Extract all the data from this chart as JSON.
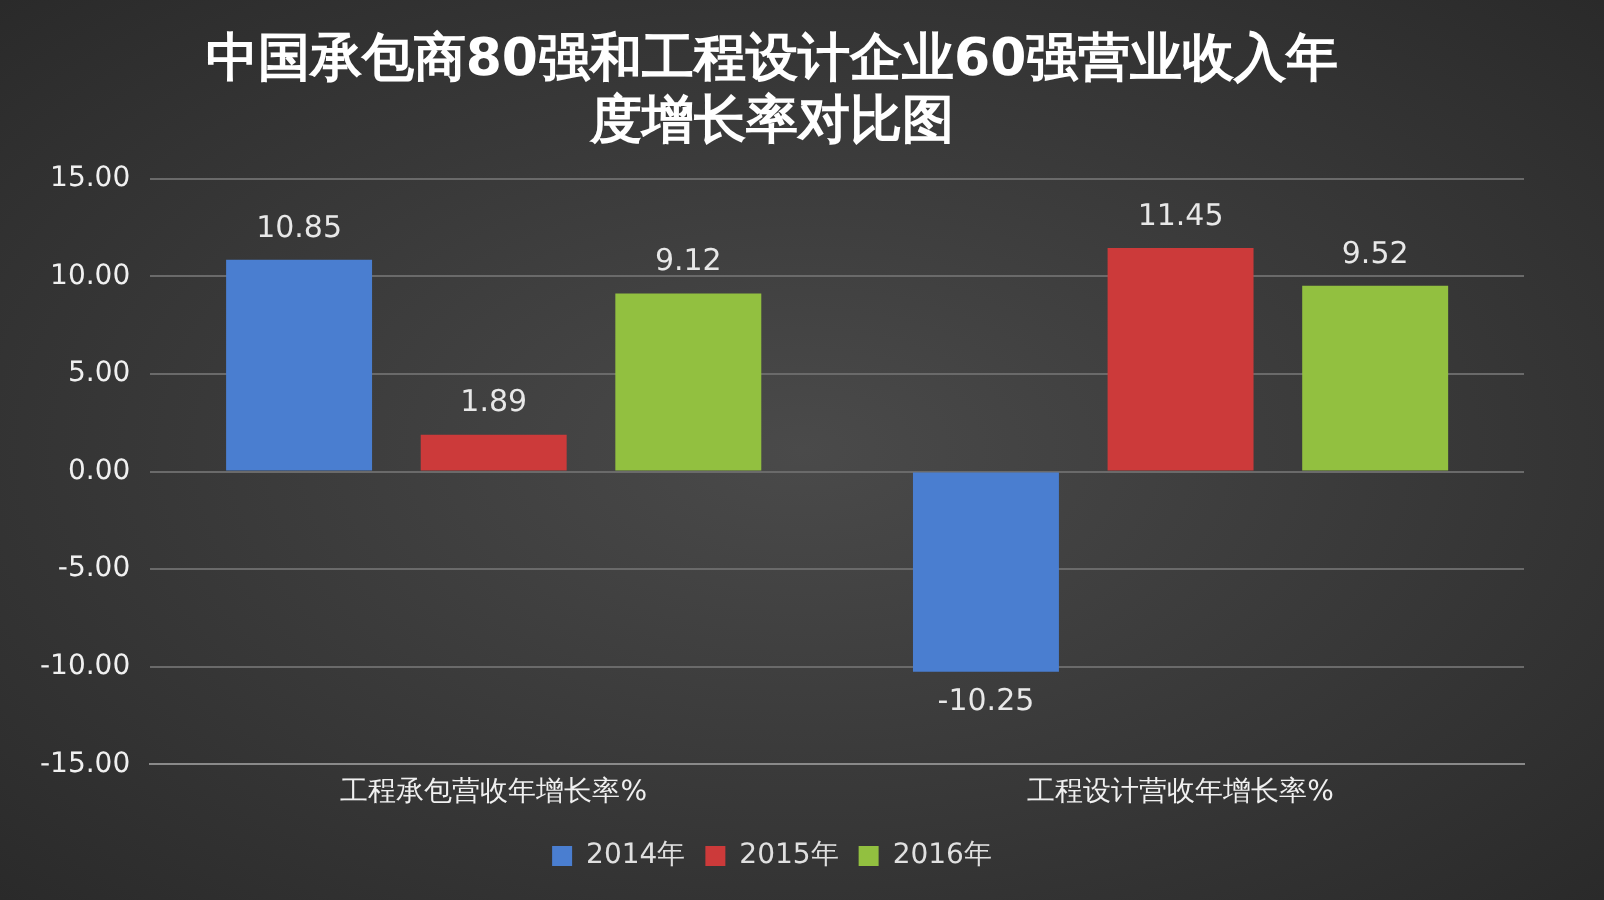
{
  "chart_data": {
    "type": "bar",
    "title": "中国承包商80强和工程设计企业60强营业收入年度增长率对比图",
    "categories": [
      "工程承包营收年增长率%",
      "工程设计营收年增长率%"
    ],
    "series": [
      {
        "name": "2014年",
        "color": "#4a7ed0",
        "values": [
          10.85,
          -10.25
        ]
      },
      {
        "name": "2015年",
        "color": "#cc3a3a",
        "values": [
          1.89,
          11.45
        ]
      },
      {
        "name": "2016年",
        "color": "#92c040",
        "values": [
          9.12,
          9.52
        ]
      }
    ],
    "ylim": [
      -15,
      15
    ],
    "yticks": [
      {
        "value": -15,
        "label": "-15.00"
      },
      {
        "value": -10,
        "label": "-10.00"
      },
      {
        "value": -5,
        "label": "-5.00"
      },
      {
        "value": 0,
        "label": "0.00"
      },
      {
        "value": 5,
        "label": "5.00"
      },
      {
        "value": 10,
        "label": "10.00"
      },
      {
        "value": 15,
        "label": "15.00"
      }
    ],
    "grid": "y",
    "legend": "bottom",
    "data_labels": true
  }
}
